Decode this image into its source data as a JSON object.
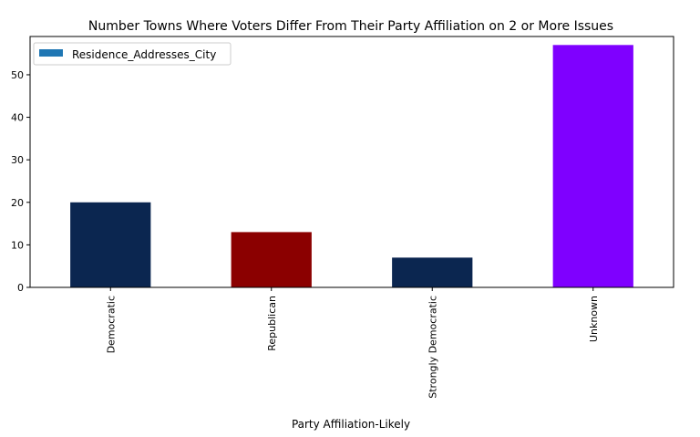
{
  "chart_data": {
    "type": "bar",
    "title": "Number Towns Where Voters Differ From Their Party Affiliation on 2 or More Issues",
    "xlabel": "Party Affiliation-Likely",
    "ylabel": "",
    "categories": [
      "Democratic",
      "Republican",
      "Strongly Democratic",
      "Unknown"
    ],
    "series": [
      {
        "name": "Residence_Addresses_City",
        "values": [
          20,
          13,
          7,
          57
        ]
      }
    ],
    "bar_colors": [
      "#0b2650",
      "#8b0000",
      "#0b2650",
      "#7f00ff"
    ],
    "legend_color": "#1f77b4",
    "ylim": [
      0,
      59
    ],
    "yticks": [
      0,
      10,
      20,
      30,
      40,
      50
    ],
    "legend_position": "top-left",
    "grid": false
  }
}
